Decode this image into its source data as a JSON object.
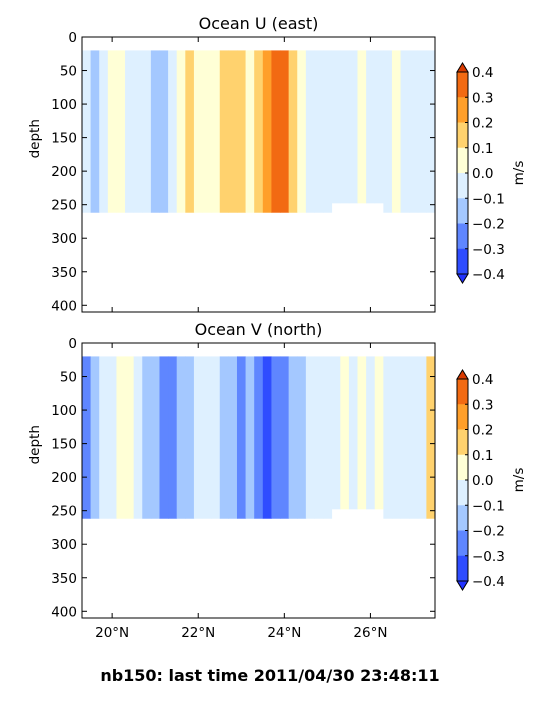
{
  "chart_data": [
    {
      "type": "heatmap",
      "title": "Ocean U (east)",
      "xlabel": "",
      "ylabel": "depth",
      "x_range_deg_north": [
        19.3,
        27.5
      ],
      "y_range_depth": [
        0,
        410
      ],
      "y_inverted": true,
      "x_ticks": [
        20,
        22,
        24,
        26
      ],
      "x_tick_labels": [],
      "y_ticks": [
        0,
        50,
        100,
        150,
        200,
        250,
        300,
        350,
        400
      ],
      "y_tick_labels": [
        "0",
        "50",
        "100",
        "150",
        "200",
        "250",
        "300",
        "350",
        "400"
      ],
      "data_depth_range": [
        20,
        262
      ],
      "colorbar": {
        "label": "m/s",
        "levels": [
          -0.4,
          -0.3,
          -0.2,
          -0.1,
          0.0,
          0.1,
          0.2,
          0.3,
          0.4
        ],
        "tick_labels": [
          "0.4",
          "0.3",
          "0.2",
          "0.1",
          "0.0",
          "−0.1",
          "−0.2",
          "−0.3",
          "−0.4"
        ],
        "extend": "both"
      },
      "bands": [
        {
          "lat": 19.4,
          "depth": 262,
          "value": -0.02
        },
        {
          "lat": 19.6,
          "depth": 262,
          "value": -0.12
        },
        {
          "lat": 19.8,
          "depth": 262,
          "value": -0.04
        },
        {
          "lat": 20.0,
          "depth": 262,
          "value": 0.02
        },
        {
          "lat": 20.2,
          "depth": 262,
          "value": 0.06
        },
        {
          "lat": 20.4,
          "depth": 262,
          "value": -0.04
        },
        {
          "lat": 20.6,
          "depth": 262,
          "value": -0.06
        },
        {
          "lat": 20.8,
          "depth": 262,
          "value": -0.08
        },
        {
          "lat": 21.0,
          "depth": 262,
          "value": -0.14
        },
        {
          "lat": 21.2,
          "depth": 262,
          "value": -0.12
        },
        {
          "lat": 21.4,
          "depth": 262,
          "value": -0.06
        },
        {
          "lat": 21.6,
          "depth": 262,
          "value": 0.08
        },
        {
          "lat": 21.8,
          "depth": 262,
          "value": 0.14
        },
        {
          "lat": 22.0,
          "depth": 262,
          "value": 0.04
        },
        {
          "lat": 22.2,
          "depth": 262,
          "value": 0.06
        },
        {
          "lat": 22.4,
          "depth": 262,
          "value": 0.02
        },
        {
          "lat": 22.6,
          "depth": 262,
          "value": 0.14
        },
        {
          "lat": 22.8,
          "depth": 262,
          "value": 0.18
        },
        {
          "lat": 23.0,
          "depth": 262,
          "value": 0.16
        },
        {
          "lat": 23.2,
          "depth": 262,
          "value": 0.06
        },
        {
          "lat": 23.4,
          "depth": 262,
          "value": 0.12
        },
        {
          "lat": 23.6,
          "depth": 262,
          "value": 0.26
        },
        {
          "lat": 23.8,
          "depth": 262,
          "value": 0.32
        },
        {
          "lat": 24.0,
          "depth": 262,
          "value": 0.3
        },
        {
          "lat": 24.2,
          "depth": 262,
          "value": 0.18
        },
        {
          "lat": 24.4,
          "depth": 262,
          "value": 0.08
        },
        {
          "lat": 24.6,
          "depth": 262,
          "value": -0.02
        },
        {
          "lat": 24.8,
          "depth": 262,
          "value": -0.08
        },
        {
          "lat": 25.0,
          "depth": 262,
          "value": -0.04
        },
        {
          "lat": 25.2,
          "depth": 248,
          "value": -0.06
        },
        {
          "lat": 25.4,
          "depth": 248,
          "value": -0.02
        },
        {
          "lat": 25.6,
          "depth": 248,
          "value": -0.04
        },
        {
          "lat": 25.8,
          "depth": 248,
          "value": 0.02
        },
        {
          "lat": 26.0,
          "depth": 248,
          "value": -0.04
        },
        {
          "lat": 26.2,
          "depth": 248,
          "value": -0.06
        },
        {
          "lat": 26.4,
          "depth": 262,
          "value": -0.02
        },
        {
          "lat": 26.6,
          "depth": 262,
          "value": 0.04
        },
        {
          "lat": 26.8,
          "depth": 262,
          "value": -0.04
        },
        {
          "lat": 27.0,
          "depth": 262,
          "value": -0.02
        },
        {
          "lat": 27.2,
          "depth": 262,
          "value": -0.06
        },
        {
          "lat": 27.4,
          "depth": 262,
          "value": -0.04
        }
      ]
    },
    {
      "type": "heatmap",
      "title": "Ocean V (north)",
      "xlabel": "",
      "ylabel": "depth",
      "x_range_deg_north": [
        19.3,
        27.5
      ],
      "y_range_depth": [
        0,
        410
      ],
      "y_inverted": true,
      "x_ticks": [
        20,
        22,
        24,
        26
      ],
      "x_tick_labels": [
        "20°N",
        "22°N",
        "24°N",
        "26°N"
      ],
      "y_ticks": [
        0,
        50,
        100,
        150,
        200,
        250,
        300,
        350,
        400
      ],
      "y_tick_labels": [
        "0",
        "50",
        "100",
        "150",
        "200",
        "250",
        "300",
        "350",
        "400"
      ],
      "data_depth_range": [
        20,
        262
      ],
      "colorbar": {
        "label": "m/s",
        "levels": [
          -0.4,
          -0.3,
          -0.2,
          -0.1,
          0.0,
          0.1,
          0.2,
          0.3,
          0.4
        ],
        "tick_labels": [
          "0.4",
          "0.3",
          "0.2",
          "0.1",
          "0.0",
          "−0.1",
          "−0.2",
          "−0.3",
          "−0.4"
        ],
        "extend": "both"
      },
      "bands": [
        {
          "lat": 19.4,
          "depth": 262,
          "value": -0.22
        },
        {
          "lat": 19.6,
          "depth": 262,
          "value": -0.14
        },
        {
          "lat": 19.8,
          "depth": 262,
          "value": -0.06
        },
        {
          "lat": 20.0,
          "depth": 262,
          "value": -0.04
        },
        {
          "lat": 20.2,
          "depth": 262,
          "value": 0.08
        },
        {
          "lat": 20.4,
          "depth": 262,
          "value": 0.02
        },
        {
          "lat": 20.6,
          "depth": 262,
          "value": -0.08
        },
        {
          "lat": 20.8,
          "depth": 262,
          "value": -0.14
        },
        {
          "lat": 21.0,
          "depth": 262,
          "value": -0.16
        },
        {
          "lat": 21.2,
          "depth": 262,
          "value": -0.24
        },
        {
          "lat": 21.4,
          "depth": 262,
          "value": -0.26
        },
        {
          "lat": 21.6,
          "depth": 262,
          "value": -0.18
        },
        {
          "lat": 21.8,
          "depth": 262,
          "value": -0.12
        },
        {
          "lat": 22.0,
          "depth": 262,
          "value": -0.08
        },
        {
          "lat": 22.2,
          "depth": 262,
          "value": -0.06
        },
        {
          "lat": 22.4,
          "depth": 262,
          "value": -0.04
        },
        {
          "lat": 22.6,
          "depth": 262,
          "value": -0.14
        },
        {
          "lat": 22.8,
          "depth": 262,
          "value": -0.18
        },
        {
          "lat": 23.0,
          "depth": 262,
          "value": -0.22
        },
        {
          "lat": 23.2,
          "depth": 262,
          "value": -0.16
        },
        {
          "lat": 23.4,
          "depth": 262,
          "value": -0.24
        },
        {
          "lat": 23.6,
          "depth": 262,
          "value": -0.32
        },
        {
          "lat": 23.8,
          "depth": 262,
          "value": -0.3
        },
        {
          "lat": 24.0,
          "depth": 262,
          "value": -0.24
        },
        {
          "lat": 24.2,
          "depth": 262,
          "value": -0.16
        },
        {
          "lat": 24.4,
          "depth": 262,
          "value": -0.12
        },
        {
          "lat": 24.6,
          "depth": 262,
          "value": -0.08
        },
        {
          "lat": 24.8,
          "depth": 262,
          "value": -0.06
        },
        {
          "lat": 25.0,
          "depth": 262,
          "value": -0.04
        },
        {
          "lat": 25.2,
          "depth": 248,
          "value": -0.02
        },
        {
          "lat": 25.4,
          "depth": 248,
          "value": 0.04
        },
        {
          "lat": 25.6,
          "depth": 248,
          "value": -0.02
        },
        {
          "lat": 25.8,
          "depth": 248,
          "value": 0.02
        },
        {
          "lat": 26.0,
          "depth": 248,
          "value": -0.04
        },
        {
          "lat": 26.2,
          "depth": 248,
          "value": 0.06
        },
        {
          "lat": 26.4,
          "depth": 262,
          "value": -0.02
        },
        {
          "lat": 26.6,
          "depth": 262,
          "value": -0.06
        },
        {
          "lat": 26.8,
          "depth": 262,
          "value": -0.04
        },
        {
          "lat": 27.0,
          "depth": 262,
          "value": -0.02
        },
        {
          "lat": 27.2,
          "depth": 262,
          "value": -0.04
        },
        {
          "lat": 27.4,
          "depth": 262,
          "value": 0.12
        }
      ]
    }
  ],
  "palette": {
    "below": "#2233ff",
    "bins": [
      "#2f4dff",
      "#5f86ff",
      "#a4c8ff",
      "#def0ff",
      "#ffffd6",
      "#ffd26e",
      "#ff9f2a",
      "#f26a12"
    ],
    "above": "#d93a00"
  },
  "footer": {
    "title": "nb150: last time 2011/04/30 23:48:11"
  }
}
